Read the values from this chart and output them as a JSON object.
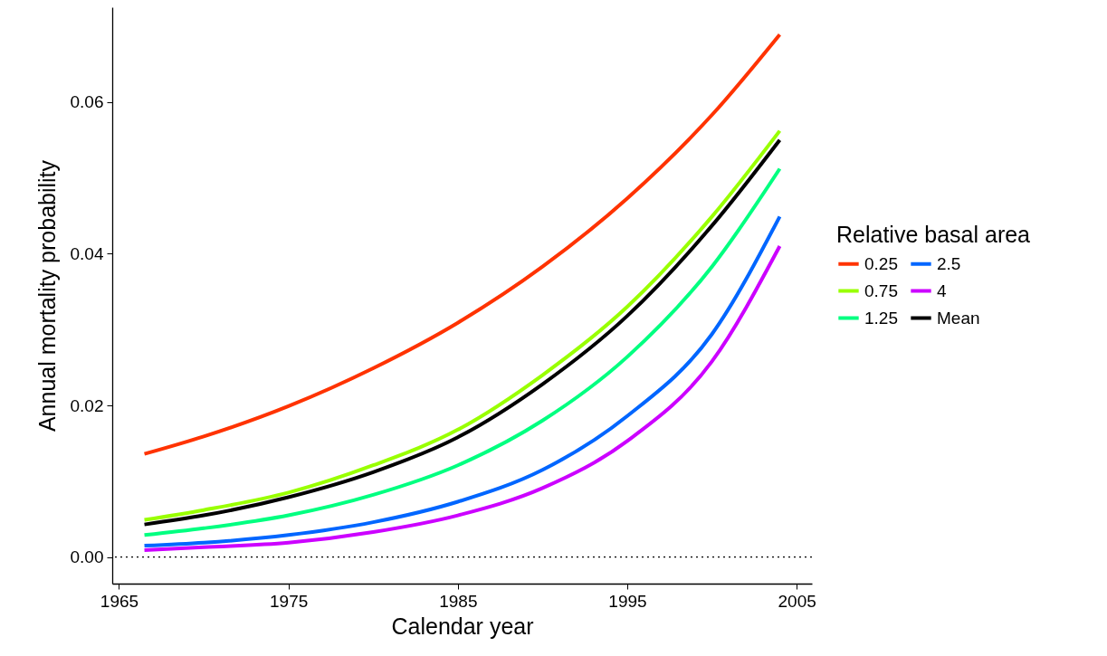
{
  "chart_data": {
    "type": "line",
    "xlabel": "Calendar year",
    "ylabel": "Annual mortality probability",
    "legend_title": "Relative basal area",
    "legend": "right",
    "grid": false,
    "line_style": "solid",
    "x": [
      1966.5,
      1970,
      1975,
      1980,
      1985,
      1990,
      1995,
      2000,
      2004
    ],
    "xlim": [
      1964.6,
      2005.9
    ],
    "xticks": [
      1965,
      1975,
      1985,
      1995,
      2005
    ],
    "ylim": [
      -0.0035,
      0.0725
    ],
    "yticks": [
      {
        "value": 0,
        "label": "0.00"
      },
      {
        "value": 0.02,
        "label": "0.02"
      },
      {
        "value": 0.04,
        "label": "0.04"
      },
      {
        "value": 0.06,
        "label": "0.06"
      }
    ],
    "ref_lines": [
      {
        "axis": "y",
        "value": 0,
        "line_style": "dotted",
        "color": "#000000"
      }
    ],
    "series": [
      {
        "name": "0.25",
        "color": "#ff3300",
        "values": [
          0.0136,
          0.0159,
          0.0199,
          0.0249,
          0.0309,
          0.0383,
          0.0473,
          0.0583,
          0.0689
        ]
      },
      {
        "name": "0.75",
        "color": "#99ff00",
        "values": [
          0.0049,
          0.0062,
          0.0085,
          0.0121,
          0.0168,
          0.024,
          0.033,
          0.0449,
          0.0562
        ]
      },
      {
        "name": "1.25",
        "color": "#00ff80",
        "values": [
          0.0029,
          0.0038,
          0.0055,
          0.0082,
          0.0121,
          0.018,
          0.0264,
          0.0383,
          0.0512
        ]
      },
      {
        "name": "2.5",
        "color": "#0066ff",
        "values": [
          0.0015,
          0.0019,
          0.0029,
          0.0046,
          0.0073,
          0.0115,
          0.0186,
          0.0294,
          0.0449
        ]
      },
      {
        "name": "4",
        "color": "#cc00ff",
        "values": [
          0.0009,
          0.0013,
          0.0019,
          0.0033,
          0.0055,
          0.0091,
          0.0153,
          0.0258,
          0.041
        ]
      },
      {
        "name": "Mean",
        "color": "#000000",
        "values": [
          0.0043,
          0.0055,
          0.0079,
          0.0112,
          0.0158,
          0.0228,
          0.0318,
          0.0437,
          0.055
        ]
      }
    ]
  }
}
